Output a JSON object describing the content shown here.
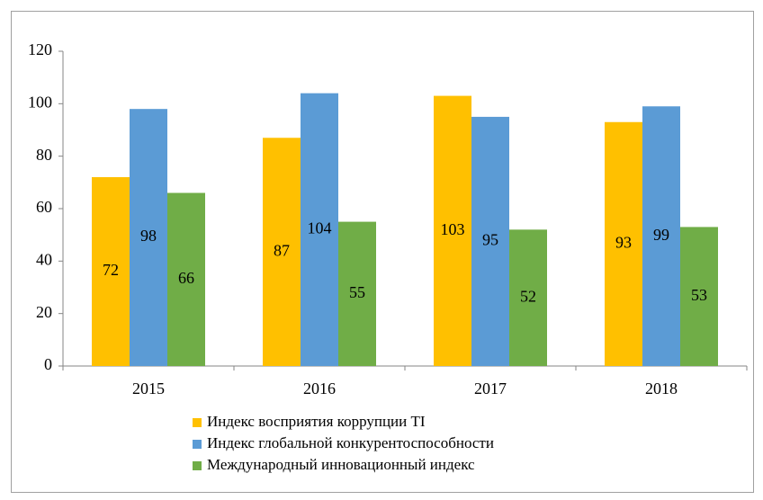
{
  "chart_data": {
    "type": "bar",
    "categories": [
      "2015",
      "2016",
      "2017",
      "2018"
    ],
    "series": [
      {
        "name": "Индекс восприятия коррупции  TI",
        "color": "#ffc000",
        "values": [
          72,
          87,
          103,
          93
        ]
      },
      {
        "name": "Индекс глобальной конкурентоспособности",
        "color": "#5b9bd5",
        "values": [
          98,
          104,
          95,
          99
        ]
      },
      {
        "name": "Международный  инновационный индекс",
        "color": "#70ad47",
        "values": [
          66,
          55,
          52,
          53
        ]
      }
    ],
    "ylim": [
      0,
      120
    ],
    "yticks": [
      0,
      20,
      40,
      60,
      80,
      100,
      120
    ],
    "grid": false,
    "legend": "bottom"
  }
}
